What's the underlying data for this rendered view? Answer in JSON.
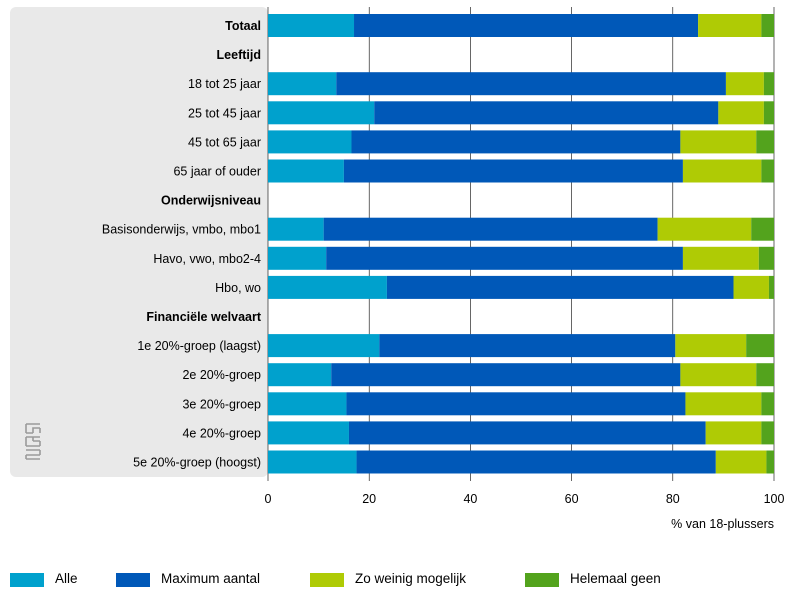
{
  "chart_data": {
    "type": "bar",
    "orientation": "horizontal",
    "stacked": true,
    "categories": [
      {
        "label": "Totaal",
        "header": true,
        "values": [
          17,
          68,
          12.5,
          2.5
        ]
      },
      {
        "label": "Leeftijd",
        "header": true,
        "values": null
      },
      {
        "label": "18 tot 25 jaar",
        "header": false,
        "values": [
          13.5,
          77,
          7.5,
          2
        ]
      },
      {
        "label": "25 tot 45 jaar",
        "header": false,
        "values": [
          21,
          68,
          9,
          2
        ]
      },
      {
        "label": "45 tot 65 jaar",
        "header": false,
        "values": [
          16.5,
          65,
          15,
          3.5
        ]
      },
      {
        "label": "65 jaar of ouder",
        "header": false,
        "values": [
          15,
          67,
          15.5,
          2.5
        ]
      },
      {
        "label": "Onderwijsniveau",
        "header": true,
        "values": null
      },
      {
        "label": "Basisonderwijs, vmbo, mbo1",
        "header": false,
        "values": [
          11,
          66,
          18.5,
          4.5
        ]
      },
      {
        "label": "Havo, vwo, mbo2-4",
        "header": false,
        "values": [
          11.5,
          70.5,
          15,
          3
        ]
      },
      {
        "label": "Hbo, wo",
        "header": false,
        "values": [
          23.5,
          68.5,
          7,
          1
        ]
      },
      {
        "label": "Financiële welvaart",
        "header": true,
        "values": null
      },
      {
        "label": "1e 20%-groep (laagst)",
        "header": false,
        "values": [
          22,
          58.5,
          14,
          5.5
        ]
      },
      {
        "label": "2e 20%-groep",
        "header": false,
        "values": [
          12.5,
          69,
          15,
          3.5
        ]
      },
      {
        "label": "3e 20%-groep",
        "header": false,
        "values": [
          15.5,
          67,
          15,
          2.5
        ]
      },
      {
        "label": "4e 20%-groep",
        "header": false,
        "values": [
          16,
          70.5,
          11,
          2.5
        ]
      },
      {
        "label": "5e 20%-groep (hoogst)",
        "header": false,
        "values": [
          17.5,
          71,
          10,
          1.5
        ]
      }
    ],
    "series": [
      {
        "name": "Alle",
        "color": "#00a1cd"
      },
      {
        "name": "Maximum aantal",
        "color": "#0058b8"
      },
      {
        "name": "Zo weinig mogelijk",
        "color": "#afcb05"
      },
      {
        "name": "Helemaal geen",
        "color": "#53a31d"
      }
    ],
    "xlim": [
      0,
      100
    ],
    "xticks": [
      0,
      20,
      40,
      60,
      80,
      100
    ],
    "xlabel": "% van 18-plussers",
    "grid": true,
    "legend_position": "bottom",
    "colors": {
      "label_panel": "#e9e9e9",
      "grid": "#000000"
    },
    "logo": "cbs-logo"
  }
}
